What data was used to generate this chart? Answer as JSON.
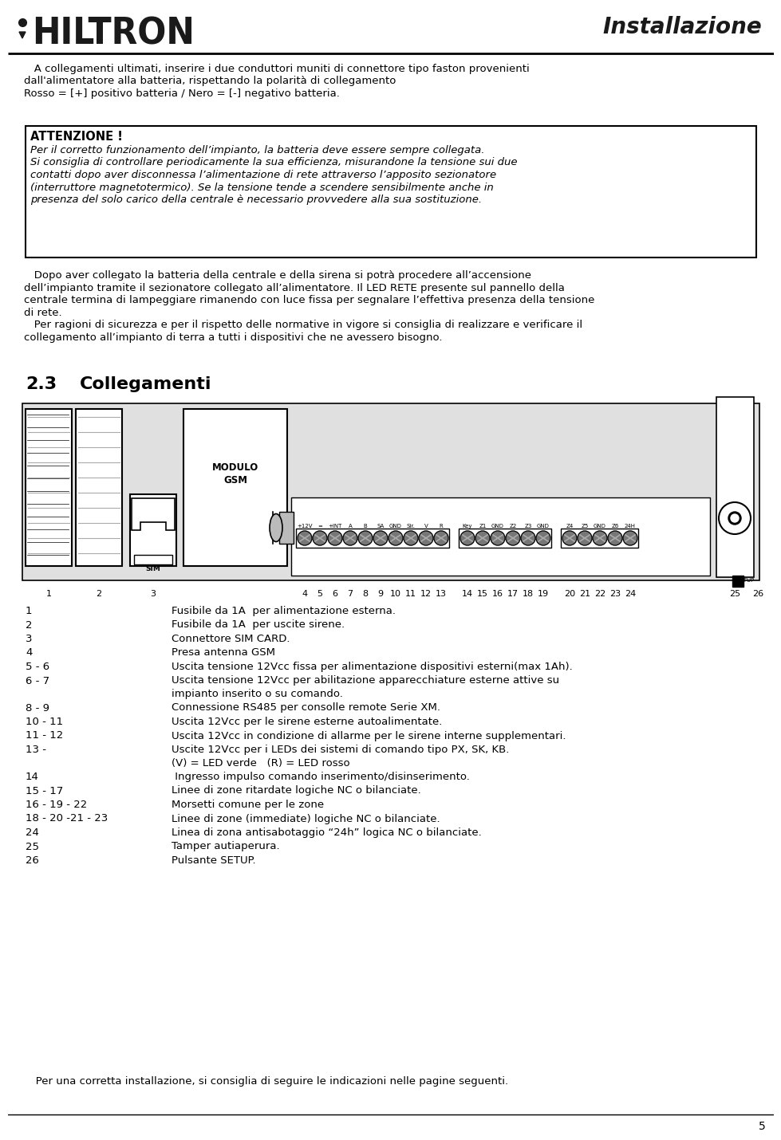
{
  "bg_color": "#ffffff",
  "page_number": "5",
  "body_text_1_lines": [
    "   A collegamenti ultimati, inserire i due conduttori muniti di connettore tipo faston provenienti",
    "dall'alimentatore alla batteria, rispettando la polarità di collegamento",
    "Rosso = [+] positivo batteria / Nero = [-] negativo batteria."
  ],
  "attention_title": "ATTENZIONE !",
  "attention_body_lines": [
    "Per il corretto funzionamento dell’impianto, la batteria deve essere sempre collegata.",
    "Si consiglia di controllare periodicamente la sua efficienza, misurandone la tensione sui due",
    "contatti dopo aver disconnessa l’alimentazione di rete attraverso l’apposito sezionatore",
    "(interruttore magnetotermico). Se la tensione tende a scendere sensibilmente anche in",
    "presenza del solo carico della centrale è necessario provvedere alla sua sostituzione."
  ],
  "body_text_2_lines": [
    "   Dopo aver collegato la batteria della centrale e della sirena si potrà procedere all’accensione",
    "dell’impianto tramite il sezionatore collegato all’alimentatore. Il LED RETE presente sul pannello della",
    "centrale termina di lampeggiare rimanendo con luce fissa per segnalare l’effettiva presenza della tensione",
    "di rete.",
    "   Per ragioni di sicurezza e per il rispetto delle normative in vigore si consiglia di realizzare e verificare il",
    "collegamento all’impianto di terra a tutti i dispositivi che ne avessero bisogno."
  ],
  "section_title": "2.3",
  "section_subtitle": "Collegamenti",
  "labels_group1": [
    "+12V",
    "=",
    "+INT",
    "A",
    "B",
    "SA",
    "GND",
    "Sir.",
    "V",
    "R"
  ],
  "labels_group2": [
    "Key",
    "Z1",
    "GND",
    "Z2",
    "Z3",
    "GND"
  ],
  "labels_group3": [
    "Z4",
    "Z5",
    "GND",
    "Z6",
    "24H"
  ],
  "legend_items": [
    [
      "1",
      "Fusibile da 1A  per alimentazione esterna."
    ],
    [
      "2",
      "Fusibile da 1A  per uscite sirene."
    ],
    [
      "3",
      "Connettore SIM CARD."
    ],
    [
      "4",
      "Presa antenna GSM"
    ],
    [
      "5 - 6",
      "Uscita tensione 12Vcc fissa per alimentazione dispositivi esterni(max 1Ah)."
    ],
    [
      "6 - 7",
      "Uscita tensione 12Vcc per abilitazione apparecchiature esterne attive su\nimpianto inserito o su comando."
    ],
    [
      "8 - 9",
      "Connessione RS485 per consolle remote Serie XM."
    ],
    [
      "10 - 11",
      "Uscita 12Vcc per le sirene esterne autoalimentate."
    ],
    [
      "11 - 12",
      "Uscita 12Vcc in condizione di allarme per le sirene interne supplementari."
    ],
    [
      "13 -",
      "Uscite 12Vcc per i LEDs dei sistemi di comando tipo PX, SK, KB.\n(V) = LED verde   (R) = LED rosso"
    ],
    [
      "14",
      " Ingresso impulso comando inserimento/disinserimento."
    ],
    [
      "15 - 17",
      "Linee di zone ritardate logiche NC o bilanciate."
    ],
    [
      "16 - 19 - 22",
      "Morsetti comune per le zone"
    ],
    [
      "18 - 20 -21 - 23",
      "Linee di zone (immediate) logiche NC o bilanciate."
    ],
    [
      "24",
      "Linea di zona antisabotaggio “24h” logica NC o bilanciate."
    ],
    [
      "25",
      "Tamper autiaperura."
    ],
    [
      "26",
      "Pulsante SETUP."
    ]
  ],
  "footer_text": "   Per una corretta installazione, si consiglia di seguire le indicazioni nelle pagine seguenti."
}
